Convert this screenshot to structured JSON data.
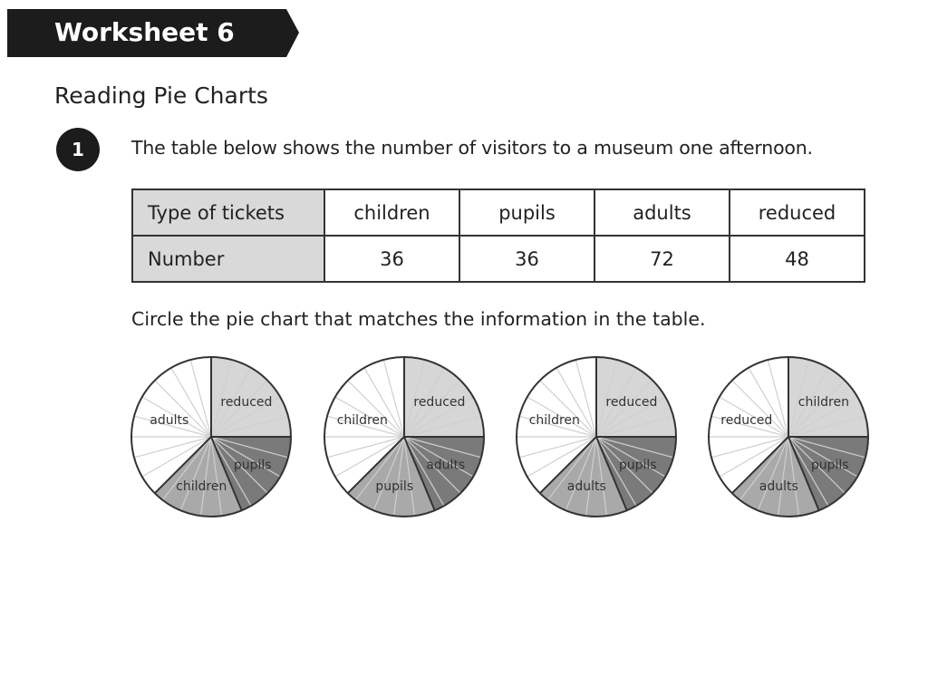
{
  "header": {
    "title": "Worksheet 6"
  },
  "section_title": "Reading Pie Charts",
  "question": {
    "number": "1",
    "text": "The table below shows the number of visitors to a museum one afternoon.",
    "instruction": "Circle the pie chart that matches the information in the table."
  },
  "table": {
    "row_headers": [
      "Type of tickets",
      "Number"
    ],
    "columns": [
      "children",
      "pupils",
      "adults",
      "reduced"
    ],
    "values": [
      "36",
      "36",
      "72",
      "48"
    ]
  },
  "chart_data": [
    {
      "type": "pie",
      "slices": [
        {
          "label": "reduced",
          "value": 48,
          "color": "#d6d6d6"
        },
        {
          "label": "pupils",
          "value": 36,
          "color": "#7a7a7a"
        },
        {
          "label": "children",
          "value": 36,
          "color": "#a9a9a9"
        },
        {
          "label": "adults",
          "value": 72,
          "color": "#ffffff"
        }
      ]
    },
    {
      "type": "pie",
      "slices": [
        {
          "label": "reduced",
          "value": 48,
          "color": "#d6d6d6"
        },
        {
          "label": "adults",
          "value": 36,
          "color": "#7a7a7a"
        },
        {
          "label": "pupils",
          "value": 36,
          "color": "#a9a9a9"
        },
        {
          "label": "children",
          "value": 72,
          "color": "#ffffff"
        }
      ]
    },
    {
      "type": "pie",
      "slices": [
        {
          "label": "reduced",
          "value": 48,
          "color": "#d6d6d6"
        },
        {
          "label": "pupils",
          "value": 36,
          "color": "#7a7a7a"
        },
        {
          "label": "adults",
          "value": 36,
          "color": "#a9a9a9"
        },
        {
          "label": "children",
          "value": 72,
          "color": "#ffffff"
        }
      ]
    },
    {
      "type": "pie",
      "slices": [
        {
          "label": "children",
          "value": 48,
          "color": "#d6d6d6"
        },
        {
          "label": "pupils",
          "value": 36,
          "color": "#7a7a7a"
        },
        {
          "label": "adults",
          "value": 36,
          "color": "#a9a9a9"
        },
        {
          "label": "reduced",
          "value": 72,
          "color": "#ffffff"
        }
      ]
    }
  ]
}
